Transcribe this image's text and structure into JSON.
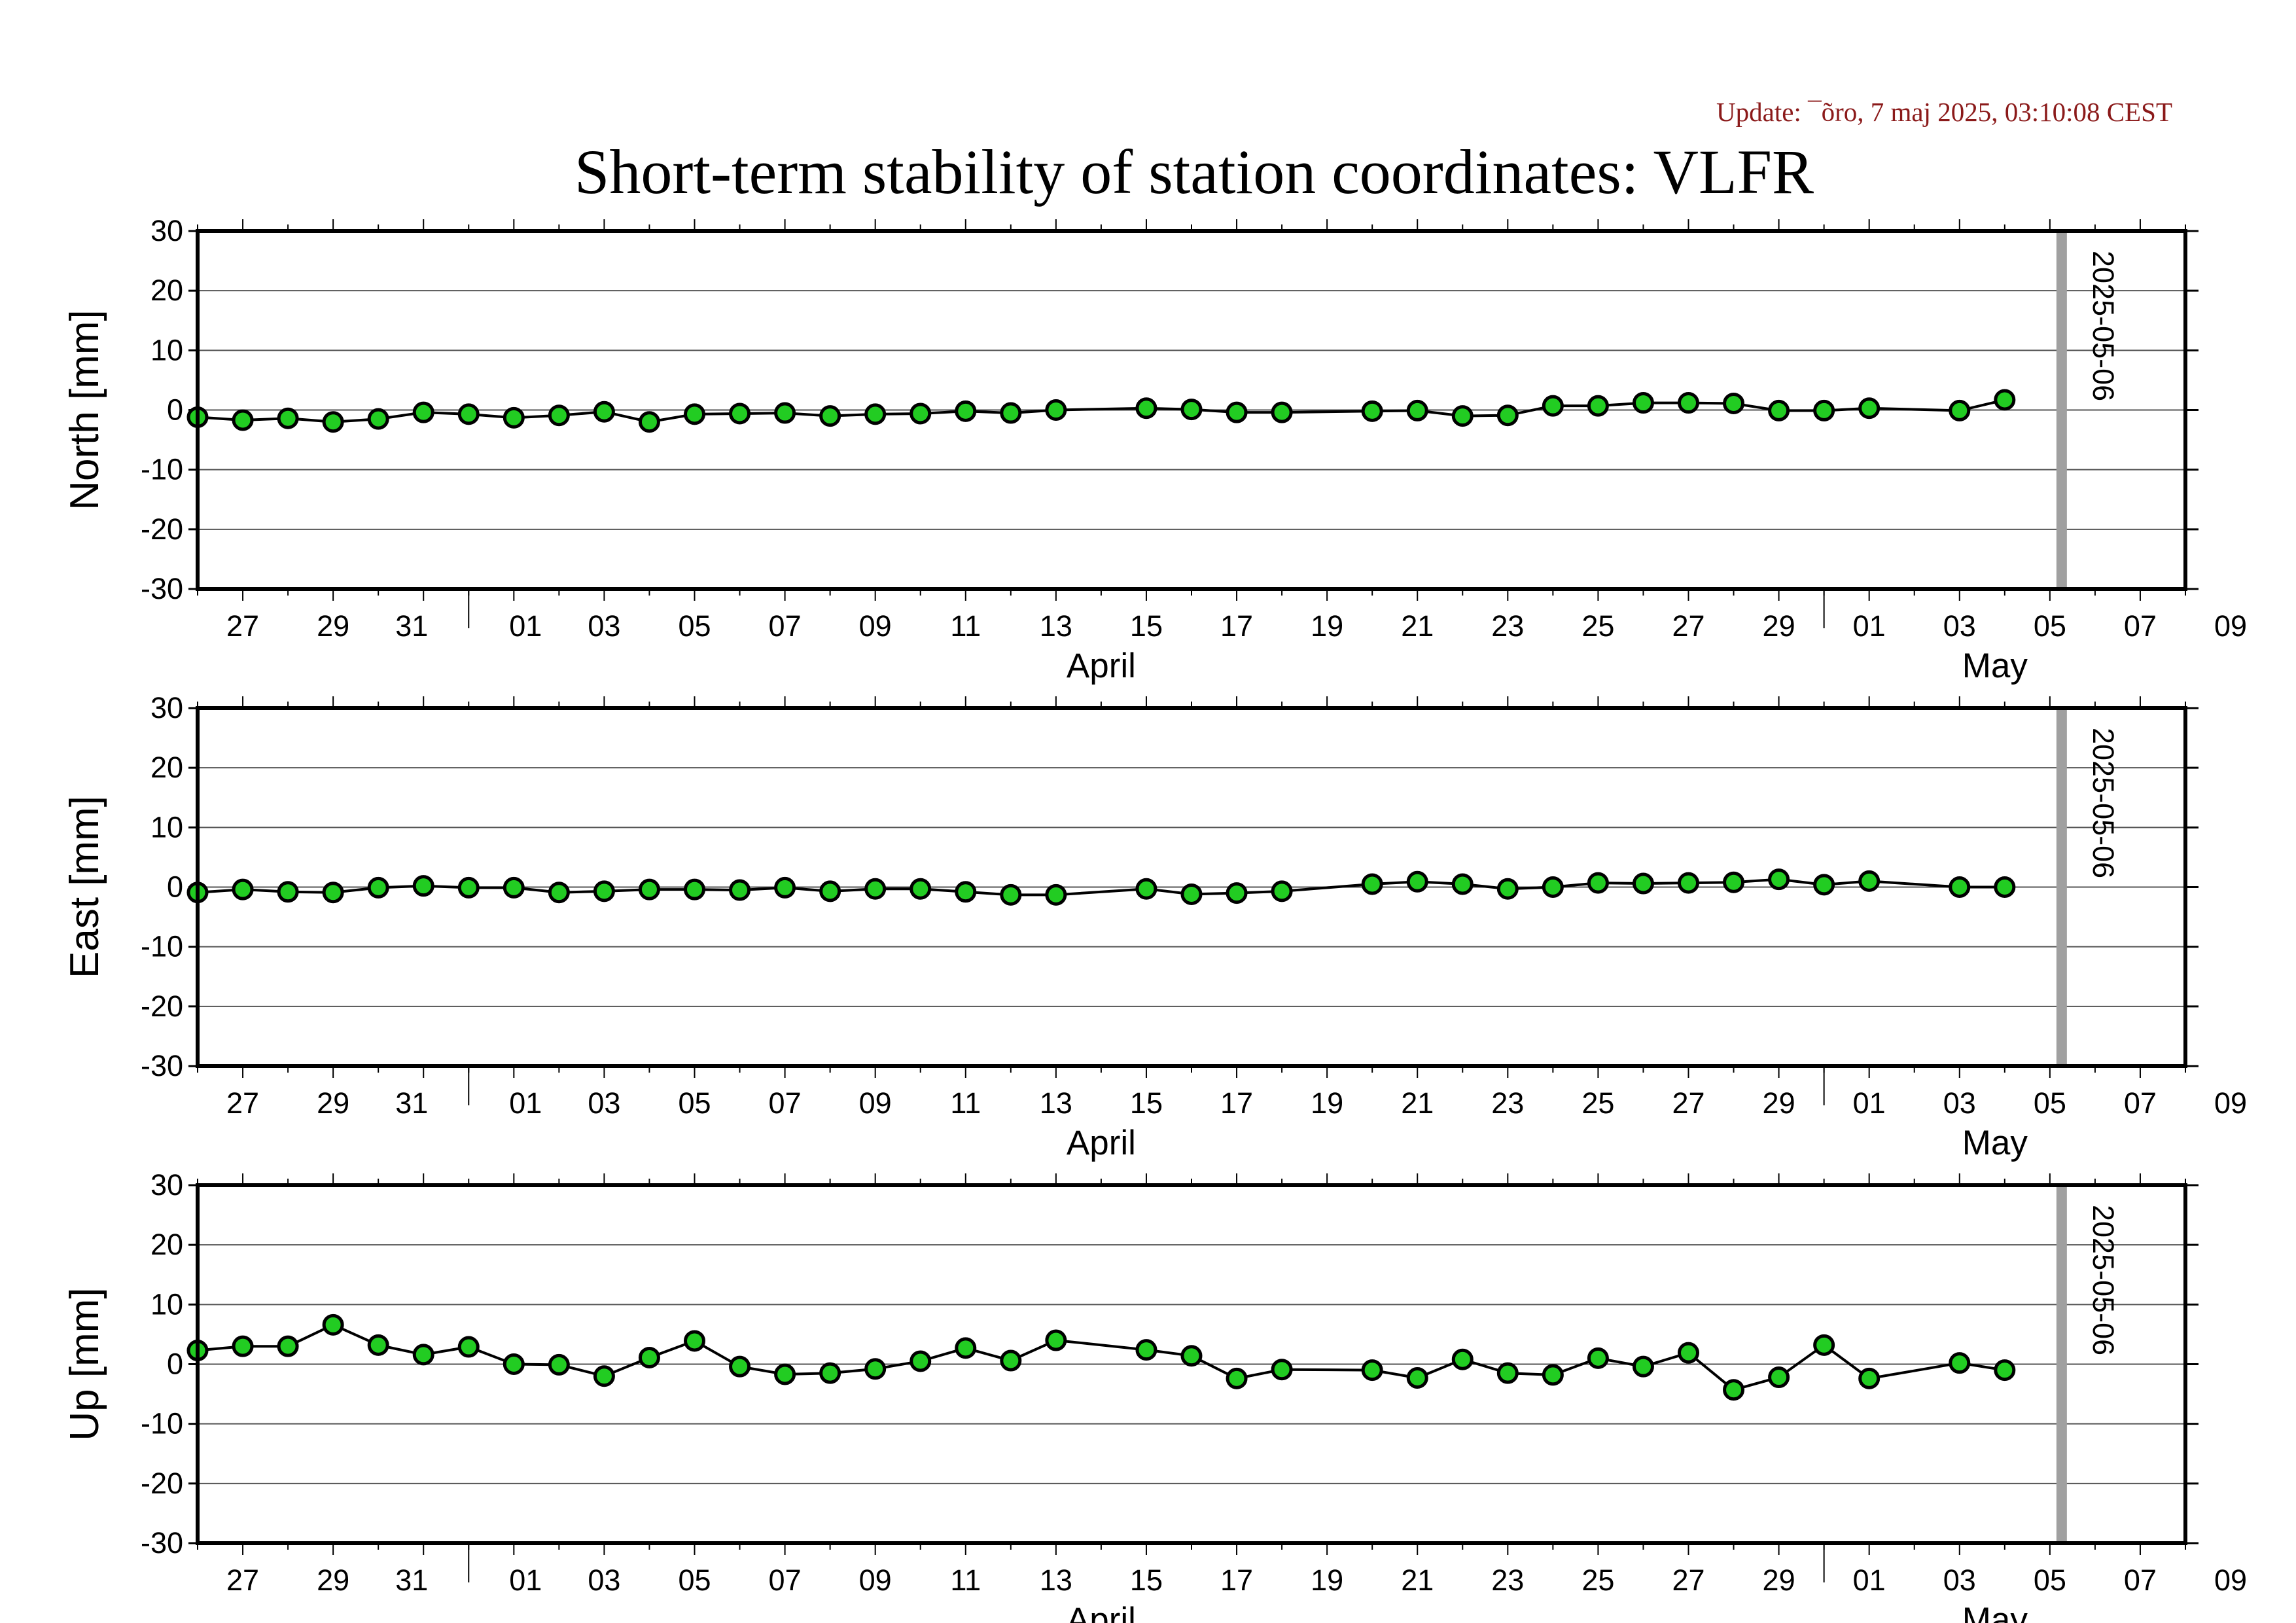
{
  "header": {
    "update": "Update: ¯õro, 7 maj 2025, 03:10:08 CEST",
    "title": "Short-term stability of station coordinates: VLFR"
  },
  "colors": {
    "point_fill": "#22cc22",
    "point_stroke": "#000000",
    "line": "#000000",
    "grid": "#555555",
    "marker_line": "#a0a0a0",
    "frame": "#000000"
  },
  "chart_data": [
    {
      "type": "line",
      "ylabel": "North [mm]",
      "ylim": [
        -30,
        30
      ],
      "yticks": [
        30,
        20,
        10,
        0,
        -10,
        -20,
        -30
      ],
      "xlim": [
        "2025-03-26",
        "2025-05-09"
      ],
      "xtick_labels": [
        "27",
        "29",
        "31",
        "01",
        "03",
        "05",
        "07",
        "09",
        "11",
        "13",
        "15",
        "17",
        "19",
        "21",
        "23",
        "25",
        "27",
        "29",
        "01",
        "03",
        "05",
        "07",
        "09"
      ],
      "month_labels": [
        "April",
        "May"
      ],
      "grid": "horizontal",
      "marker": {
        "date": "2025-05-06",
        "label": "2025-05-06"
      },
      "points": [
        [
          "2025-03-26",
          -1.2
        ],
        [
          "2025-03-27",
          -1.7
        ],
        [
          "2025-03-28",
          -1.4
        ],
        [
          "2025-03-29",
          -2.0
        ],
        [
          "2025-03-30",
          -1.5
        ],
        [
          "2025-03-31",
          -0.4
        ],
        [
          "2025-04-01",
          -0.7
        ],
        [
          "2025-04-02",
          -1.3
        ],
        [
          "2025-04-03",
          -0.9
        ],
        [
          "2025-04-04",
          -0.3
        ],
        [
          "2025-04-05",
          -2.0
        ],
        [
          "2025-04-06",
          -0.7
        ],
        [
          "2025-04-07",
          -0.6
        ],
        [
          "2025-04-08",
          -0.5
        ],
        [
          "2025-04-09",
          -1.0
        ],
        [
          "2025-04-10",
          -0.7
        ],
        [
          "2025-04-11",
          -0.6
        ],
        [
          "2025-04-12",
          -0.2
        ],
        [
          "2025-04-13",
          -0.5
        ],
        [
          "2025-04-14",
          0.0
        ],
        [
          "2025-04-16",
          0.3
        ],
        [
          "2025-04-17",
          0.1
        ],
        [
          "2025-04-18",
          -0.4
        ],
        [
          "2025-04-19",
          -0.4
        ],
        [
          "2025-04-21",
          -0.2
        ],
        [
          "2025-04-22",
          -0.1
        ],
        [
          "2025-04-23",
          -1.0
        ],
        [
          "2025-04-24",
          -0.9
        ],
        [
          "2025-04-25",
          0.7
        ],
        [
          "2025-04-26",
          0.7
        ],
        [
          "2025-04-27",
          1.2
        ],
        [
          "2025-04-28",
          1.2
        ],
        [
          "2025-04-29",
          1.1
        ],
        [
          "2025-04-30",
          -0.1
        ],
        [
          "2025-05-01",
          -0.1
        ],
        [
          "2025-05-02",
          0.3
        ],
        [
          "2025-05-04",
          -0.1
        ],
        [
          "2025-05-05",
          1.7
        ]
      ]
    },
    {
      "type": "line",
      "ylabel": "East [mm]",
      "ylim": [
        -30,
        30
      ],
      "yticks": [
        30,
        20,
        10,
        0,
        -10,
        -20,
        -30
      ],
      "xlim": [
        "2025-03-26",
        "2025-05-09"
      ],
      "xtick_labels": [
        "27",
        "29",
        "31",
        "01",
        "03",
        "05",
        "07",
        "09",
        "11",
        "13",
        "15",
        "17",
        "19",
        "21",
        "23",
        "25",
        "27",
        "29",
        "01",
        "03",
        "05",
        "07",
        "09"
      ],
      "month_labels": [
        "April",
        "May"
      ],
      "grid": "horizontal",
      "marker": {
        "date": "2025-05-06",
        "label": "2025-05-06"
      },
      "points": [
        [
          "2025-03-26",
          -0.9
        ],
        [
          "2025-03-27",
          -0.4
        ],
        [
          "2025-03-28",
          -0.8
        ],
        [
          "2025-03-29",
          -0.9
        ],
        [
          "2025-03-30",
          -0.1
        ],
        [
          "2025-03-31",
          0.2
        ],
        [
          "2025-04-01",
          -0.1
        ],
        [
          "2025-04-02",
          -0.1
        ],
        [
          "2025-04-03",
          -0.9
        ],
        [
          "2025-04-04",
          -0.7
        ],
        [
          "2025-04-05",
          -0.4
        ],
        [
          "2025-04-06",
          -0.4
        ],
        [
          "2025-04-07",
          -0.5
        ],
        [
          "2025-04-08",
          -0.1
        ],
        [
          "2025-04-09",
          -0.7
        ],
        [
          "2025-04-10",
          -0.3
        ],
        [
          "2025-04-11",
          -0.3
        ],
        [
          "2025-04-12",
          -0.8
        ],
        [
          "2025-04-13",
          -1.3
        ],
        [
          "2025-04-14",
          -1.3
        ],
        [
          "2025-04-16",
          -0.3
        ],
        [
          "2025-04-17",
          -1.2
        ],
        [
          "2025-04-18",
          -1.0
        ],
        [
          "2025-04-19",
          -0.7
        ],
        [
          "2025-04-21",
          0.5
        ],
        [
          "2025-04-22",
          0.9
        ],
        [
          "2025-04-23",
          0.5
        ],
        [
          "2025-04-24",
          -0.3
        ],
        [
          "2025-04-25",
          0.0
        ],
        [
          "2025-04-26",
          0.7
        ],
        [
          "2025-04-27",
          0.6
        ],
        [
          "2025-04-28",
          0.7
        ],
        [
          "2025-04-29",
          0.8
        ],
        [
          "2025-04-30",
          1.3
        ],
        [
          "2025-05-01",
          0.4
        ],
        [
          "2025-05-02",
          1.0
        ],
        [
          "2025-05-04",
          0.0
        ],
        [
          "2025-05-05",
          0.0
        ]
      ]
    },
    {
      "type": "line",
      "ylabel": "Up [mm]",
      "ylim": [
        -30,
        30
      ],
      "yticks": [
        30,
        20,
        10,
        0,
        -10,
        -20,
        -30
      ],
      "xlim": [
        "2025-03-26",
        "2025-05-09"
      ],
      "xtick_labels": [
        "27",
        "29",
        "31",
        "01",
        "03",
        "05",
        "07",
        "09",
        "11",
        "13",
        "15",
        "17",
        "19",
        "21",
        "23",
        "25",
        "27",
        "29",
        "01",
        "03",
        "05",
        "07",
        "09"
      ],
      "month_labels": [
        "April",
        "May"
      ],
      "grid": "horizontal",
      "marker": {
        "date": "2025-05-06",
        "label": "2025-05-06"
      },
      "points": [
        [
          "2025-03-26",
          2.3
        ],
        [
          "2025-03-27",
          3.0
        ],
        [
          "2025-03-28",
          3.0
        ],
        [
          "2025-03-29",
          6.6
        ],
        [
          "2025-03-30",
          3.2
        ],
        [
          "2025-03-31",
          1.6
        ],
        [
          "2025-04-01",
          2.9
        ],
        [
          "2025-04-02",
          0.0
        ],
        [
          "2025-04-03",
          -0.1
        ],
        [
          "2025-04-04",
          -2.0
        ],
        [
          "2025-04-05",
          1.1
        ],
        [
          "2025-04-06",
          3.9
        ],
        [
          "2025-04-07",
          -0.4
        ],
        [
          "2025-04-08",
          -1.7
        ],
        [
          "2025-04-09",
          -1.5
        ],
        [
          "2025-04-10",
          -0.8
        ],
        [
          "2025-04-11",
          0.5
        ],
        [
          "2025-04-12",
          2.7
        ],
        [
          "2025-04-13",
          0.6
        ],
        [
          "2025-04-14",
          4.0
        ],
        [
          "2025-04-16",
          2.4
        ],
        [
          "2025-04-17",
          1.4
        ],
        [
          "2025-04-18",
          -2.4
        ],
        [
          "2025-04-19",
          -0.9
        ],
        [
          "2025-04-21",
          -1.0
        ],
        [
          "2025-04-22",
          -2.3
        ],
        [
          "2025-04-23",
          0.8
        ],
        [
          "2025-04-24",
          -1.5
        ],
        [
          "2025-04-25",
          -1.8
        ],
        [
          "2025-04-26",
          1.0
        ],
        [
          "2025-04-27",
          -0.4
        ],
        [
          "2025-04-28",
          1.9
        ],
        [
          "2025-04-29",
          -4.3
        ],
        [
          "2025-04-30",
          -2.2
        ],
        [
          "2025-05-01",
          3.2
        ],
        [
          "2025-05-02",
          -2.4
        ],
        [
          "2025-05-04",
          0.2
        ],
        [
          "2025-05-05",
          -1.0
        ]
      ]
    }
  ]
}
